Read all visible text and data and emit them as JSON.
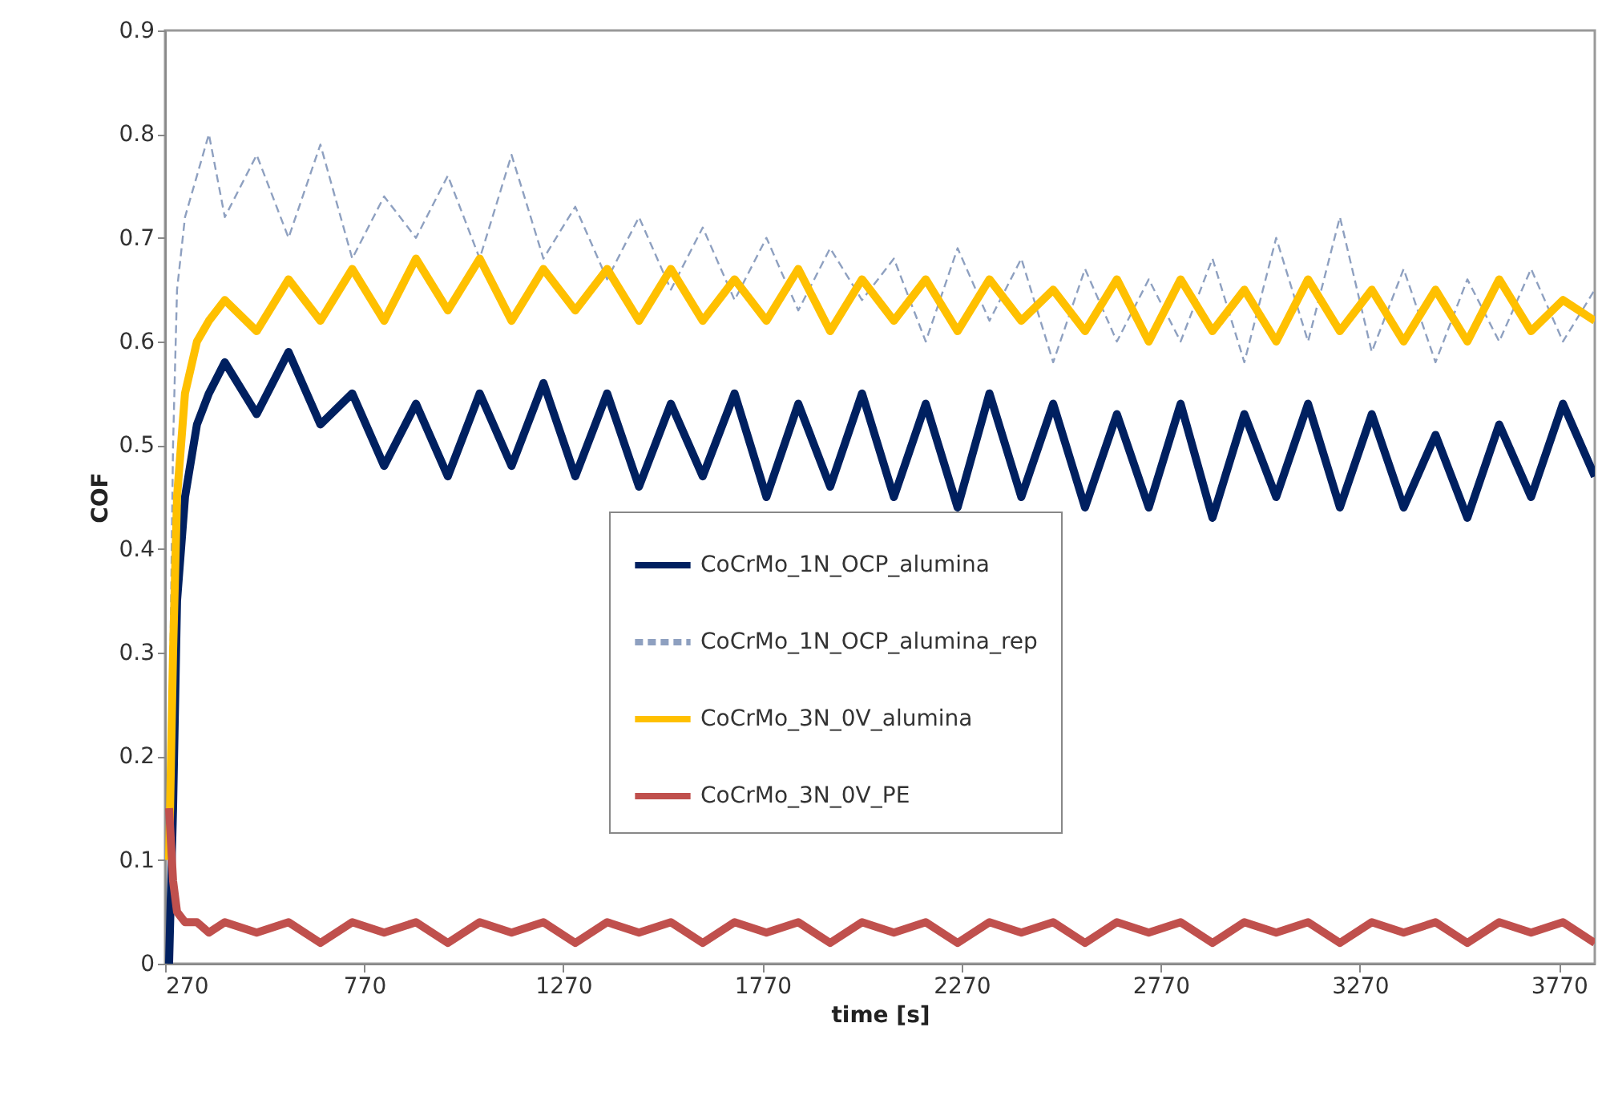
{
  "chart_data": {
    "type": "line",
    "xlabel": "time [s]",
    "ylabel": "COF",
    "xlim": [
      270,
      3860
    ],
    "xticks": [
      270,
      770,
      1270,
      1770,
      2270,
      2770,
      3270,
      3770
    ],
    "ylim": [
      0,
      0.9
    ],
    "yticks": [
      0,
      0.1,
      0.2,
      0.3,
      0.4,
      0.5,
      0.6,
      0.7,
      0.8,
      0.9
    ],
    "grid": false,
    "legend": "bottom",
    "marker": "none",
    "x": [
      280,
      290,
      300,
      320,
      350,
      380,
      420,
      500,
      580,
      660,
      740,
      820,
      900,
      980,
      1060,
      1140,
      1220,
      1300,
      1380,
      1460,
      1540,
      1620,
      1700,
      1780,
      1860,
      1940,
      2020,
      2100,
      2180,
      2260,
      2340,
      2420,
      2500,
      2580,
      2660,
      2740,
      2820,
      2900,
      2980,
      3060,
      3140,
      3220,
      3300,
      3380,
      3460,
      3540,
      3620,
      3700,
      3780,
      3860
    ],
    "series": [
      {
        "name": "CoCrMo_1N_OCP_alumina",
        "color": "#002060",
        "line_style": "solid",
        "values": [
          0,
          0.15,
          0.35,
          0.45,
          0.52,
          0.55,
          0.58,
          0.53,
          0.59,
          0.52,
          0.55,
          0.48,
          0.54,
          0.47,
          0.55,
          0.48,
          0.56,
          0.47,
          0.55,
          0.46,
          0.54,
          0.47,
          0.55,
          0.45,
          0.54,
          0.46,
          0.55,
          0.45,
          0.54,
          0.44,
          0.55,
          0.45,
          0.54,
          0.44,
          0.53,
          0.44,
          0.54,
          0.43,
          0.53,
          0.45,
          0.54,
          0.44,
          0.53,
          0.44,
          0.51,
          0.43,
          0.52,
          0.45,
          0.54,
          0.47
        ]
      },
      {
        "name": "CoCrMo_1N_OCP_alumina_rep",
        "color": "#8ea0c0",
        "line_style": "dashed",
        "values": [
          0.2,
          0.5,
          0.65,
          0.72,
          0.76,
          0.8,
          0.72,
          0.78,
          0.7,
          0.79,
          0.68,
          0.74,
          0.7,
          0.76,
          0.68,
          0.78,
          0.68,
          0.73,
          0.66,
          0.72,
          0.65,
          0.71,
          0.64,
          0.7,
          0.63,
          0.69,
          0.64,
          0.68,
          0.6,
          0.69,
          0.62,
          0.68,
          0.58,
          0.67,
          0.6,
          0.66,
          0.6,
          0.68,
          0.58,
          0.7,
          0.6,
          0.72,
          0.59,
          0.67,
          0.58,
          0.66,
          0.6,
          0.67,
          0.6,
          0.65
        ]
      },
      {
        "name": "CoCrMo_3N_0V_alumina",
        "color": "#ffc000",
        "line_style": "solid",
        "values": [
          0.1,
          0.3,
          0.45,
          0.55,
          0.6,
          0.62,
          0.64,
          0.61,
          0.66,
          0.62,
          0.67,
          0.62,
          0.68,
          0.63,
          0.68,
          0.62,
          0.67,
          0.63,
          0.67,
          0.62,
          0.67,
          0.62,
          0.66,
          0.62,
          0.67,
          0.61,
          0.66,
          0.62,
          0.66,
          0.61,
          0.66,
          0.62,
          0.65,
          0.61,
          0.66,
          0.6,
          0.66,
          0.61,
          0.65,
          0.6,
          0.66,
          0.61,
          0.65,
          0.6,
          0.65,
          0.6,
          0.66,
          0.61,
          0.64,
          0.62
        ]
      },
      {
        "name": "CoCrMo_3N_0V_PE",
        "color": "#c0504d",
        "line_style": "solid",
        "values": [
          0.15,
          0.08,
          0.05,
          0.04,
          0.04,
          0.03,
          0.04,
          0.03,
          0.04,
          0.02,
          0.04,
          0.03,
          0.04,
          0.02,
          0.04,
          0.03,
          0.04,
          0.02,
          0.04,
          0.03,
          0.04,
          0.02,
          0.04,
          0.03,
          0.04,
          0.02,
          0.04,
          0.03,
          0.04,
          0.02,
          0.04,
          0.03,
          0.04,
          0.02,
          0.04,
          0.03,
          0.04,
          0.02,
          0.04,
          0.03,
          0.04,
          0.02,
          0.04,
          0.03,
          0.04,
          0.02,
          0.04,
          0.03,
          0.04,
          0.02
        ]
      }
    ]
  }
}
